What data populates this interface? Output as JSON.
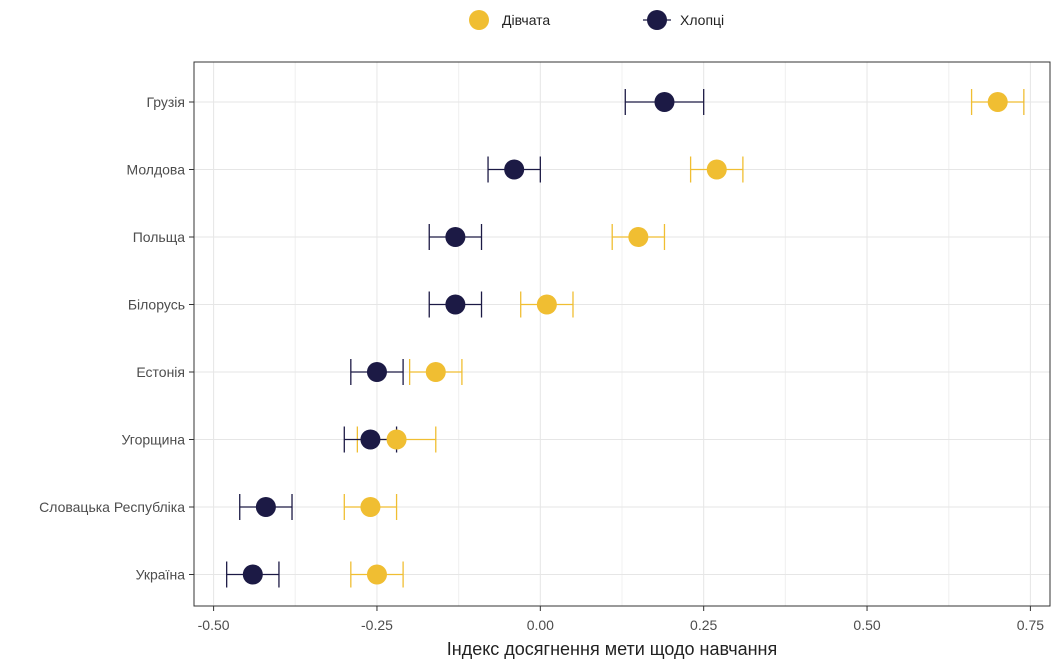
{
  "chart_data": {
    "type": "scatter",
    "orientation": "horizontal",
    "title": "",
    "xlabel": "Індекс досягнення мети щодо навчання",
    "ylabel": "",
    "xlim": [
      -0.53,
      0.78
    ],
    "xticks": [
      -0.5,
      -0.25,
      0.0,
      0.25,
      0.5,
      0.75
    ],
    "xtick_labels": [
      "-0.50",
      "-0.25",
      "0.00",
      "0.25",
      "0.50",
      "0.75"
    ],
    "categories": [
      "Грузія",
      "Молдова",
      "Польща",
      "Білорусь",
      "Естонія",
      "Угорщина",
      "Словацька Республіка",
      "Україна"
    ],
    "grid": true,
    "legend_position": "top",
    "series": [
      {
        "name": "Дівчата",
        "color": "#F0BE32",
        "values": [
          0.7,
          0.27,
          0.15,
          0.01,
          -0.16,
          -0.22,
          -0.26,
          -0.25
        ],
        "ci_low": [
          0.66,
          0.23,
          0.11,
          -0.03,
          -0.2,
          -0.28,
          -0.3,
          -0.29
        ],
        "ci_high": [
          0.74,
          0.31,
          0.19,
          0.05,
          -0.12,
          -0.16,
          -0.22,
          -0.21
        ]
      },
      {
        "name": "Хлопці",
        "color": "#1C1A45",
        "values": [
          0.19,
          -0.04,
          -0.13,
          -0.13,
          -0.25,
          -0.26,
          -0.42,
          -0.44
        ],
        "ci_low": [
          0.13,
          -0.08,
          -0.17,
          -0.17,
          -0.29,
          -0.3,
          -0.46,
          -0.48
        ],
        "ci_high": [
          0.25,
          0.0,
          -0.09,
          -0.09,
          -0.21,
          -0.22,
          -0.38,
          -0.4
        ]
      }
    ]
  }
}
